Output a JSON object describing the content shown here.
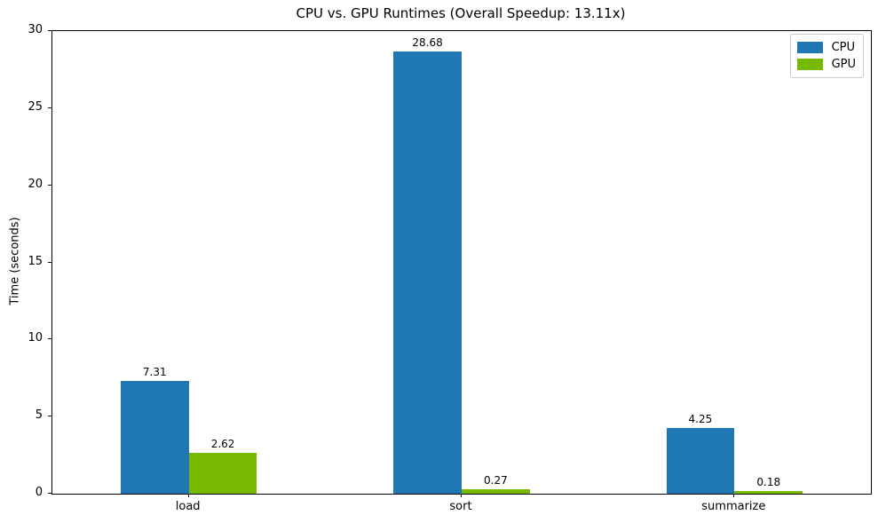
{
  "chart_data": {
    "type": "bar",
    "title": "CPU vs. GPU Runtimes (Overall Speedup: 13.11x)",
    "xlabel": "",
    "ylabel": "Time (seconds)",
    "categories": [
      "load",
      "sort",
      "summarize"
    ],
    "series": [
      {
        "name": "CPU",
        "color": "#1f77b4",
        "values": [
          7.31,
          28.68,
          4.25
        ],
        "labels": [
          "7.31",
          "28.68",
          "4.25"
        ]
      },
      {
        "name": "GPU",
        "color": "#76b900",
        "values": [
          2.62,
          0.27,
          0.18
        ],
        "labels": [
          "2.62",
          "0.27",
          "0.18"
        ]
      }
    ],
    "ylim": [
      0,
      30
    ],
    "yticks": [
      0,
      5,
      10,
      15,
      20,
      25,
      30
    ],
    "grid": "off",
    "legend_position": "upper-right",
    "bar_group_width_fraction": 0.5
  }
}
